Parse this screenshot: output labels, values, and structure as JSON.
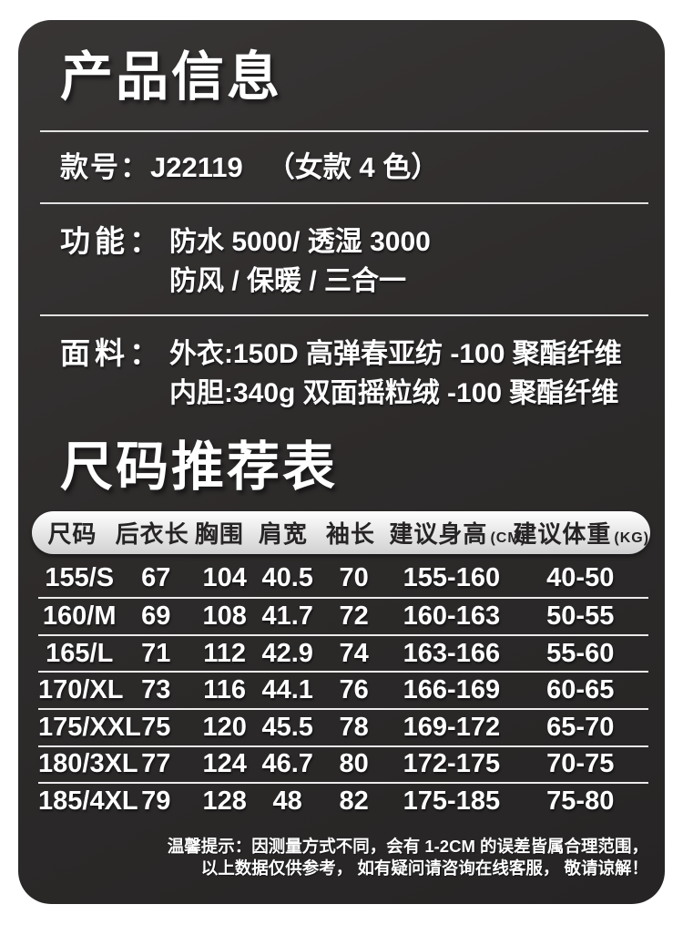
{
  "product_info": {
    "title": "产品信息",
    "style_row": {
      "label": "款号：",
      "value": "J22119",
      "variant": "（女款 4 色）"
    },
    "function_row": {
      "label": "功能：",
      "line1": "防水 5000/ 透湿 3000",
      "line2": "防风 / 保暖 / 三合一"
    },
    "fabric_row": {
      "label": "面料：",
      "line1": "外衣:150D 高弹春亚纺 -100 聚酯纤维",
      "line2": "内胆:340g 双面摇粒绒 -100 聚酯纤维"
    }
  },
  "size_chart": {
    "title": "尺码推荐表",
    "headers": [
      {
        "text": "尺码",
        "unit": ""
      },
      {
        "text": "后衣长",
        "unit": ""
      },
      {
        "text": "胸围",
        "unit": ""
      },
      {
        "text": "肩宽",
        "unit": ""
      },
      {
        "text": "袖长",
        "unit": ""
      },
      {
        "text": "建议身高",
        "unit": "(CM)"
      },
      {
        "text": "建议体重",
        "unit": "(KG)"
      }
    ],
    "rows": [
      [
        "155/S",
        "67",
        "104",
        "40.5",
        "70",
        "155-160",
        "40-50"
      ],
      [
        "160/M",
        "69",
        "108",
        "41.7",
        "72",
        "160-163",
        "50-55"
      ],
      [
        "165/L",
        "71",
        "112",
        "42.9",
        "74",
        "163-166",
        "55-60"
      ],
      [
        "170/XL",
        "73",
        "116",
        "44.1",
        "76",
        "166-169",
        "60-65"
      ],
      [
        "175/XXL",
        "75",
        "120",
        "45.5",
        "78",
        "169-172",
        "65-70"
      ],
      [
        "180/3XL",
        "77",
        "124",
        "46.7",
        "80",
        "172-175",
        "70-75"
      ],
      [
        "185/4XL",
        "79",
        "128",
        "48",
        "82",
        "175-185",
        "75-80"
      ]
    ]
  },
  "footer_note": {
    "line1": "温馨提示：因测量方式不同，会有 1-2CM 的误差皆属合理范围，",
    "line2": "以上数据仅供参考， 如有疑问请咨询在线客服， 敬请谅解！"
  },
  "colors": {
    "page_background": "#ffffff",
    "panel_dark": "#2b2929",
    "panel_light": "#383535",
    "divider": "#f2f1f1",
    "header_pill_top": "#ffffff",
    "header_pill_bottom": "#d2d1d1",
    "header_text": "#262424",
    "body_text": "#ffffff"
  }
}
